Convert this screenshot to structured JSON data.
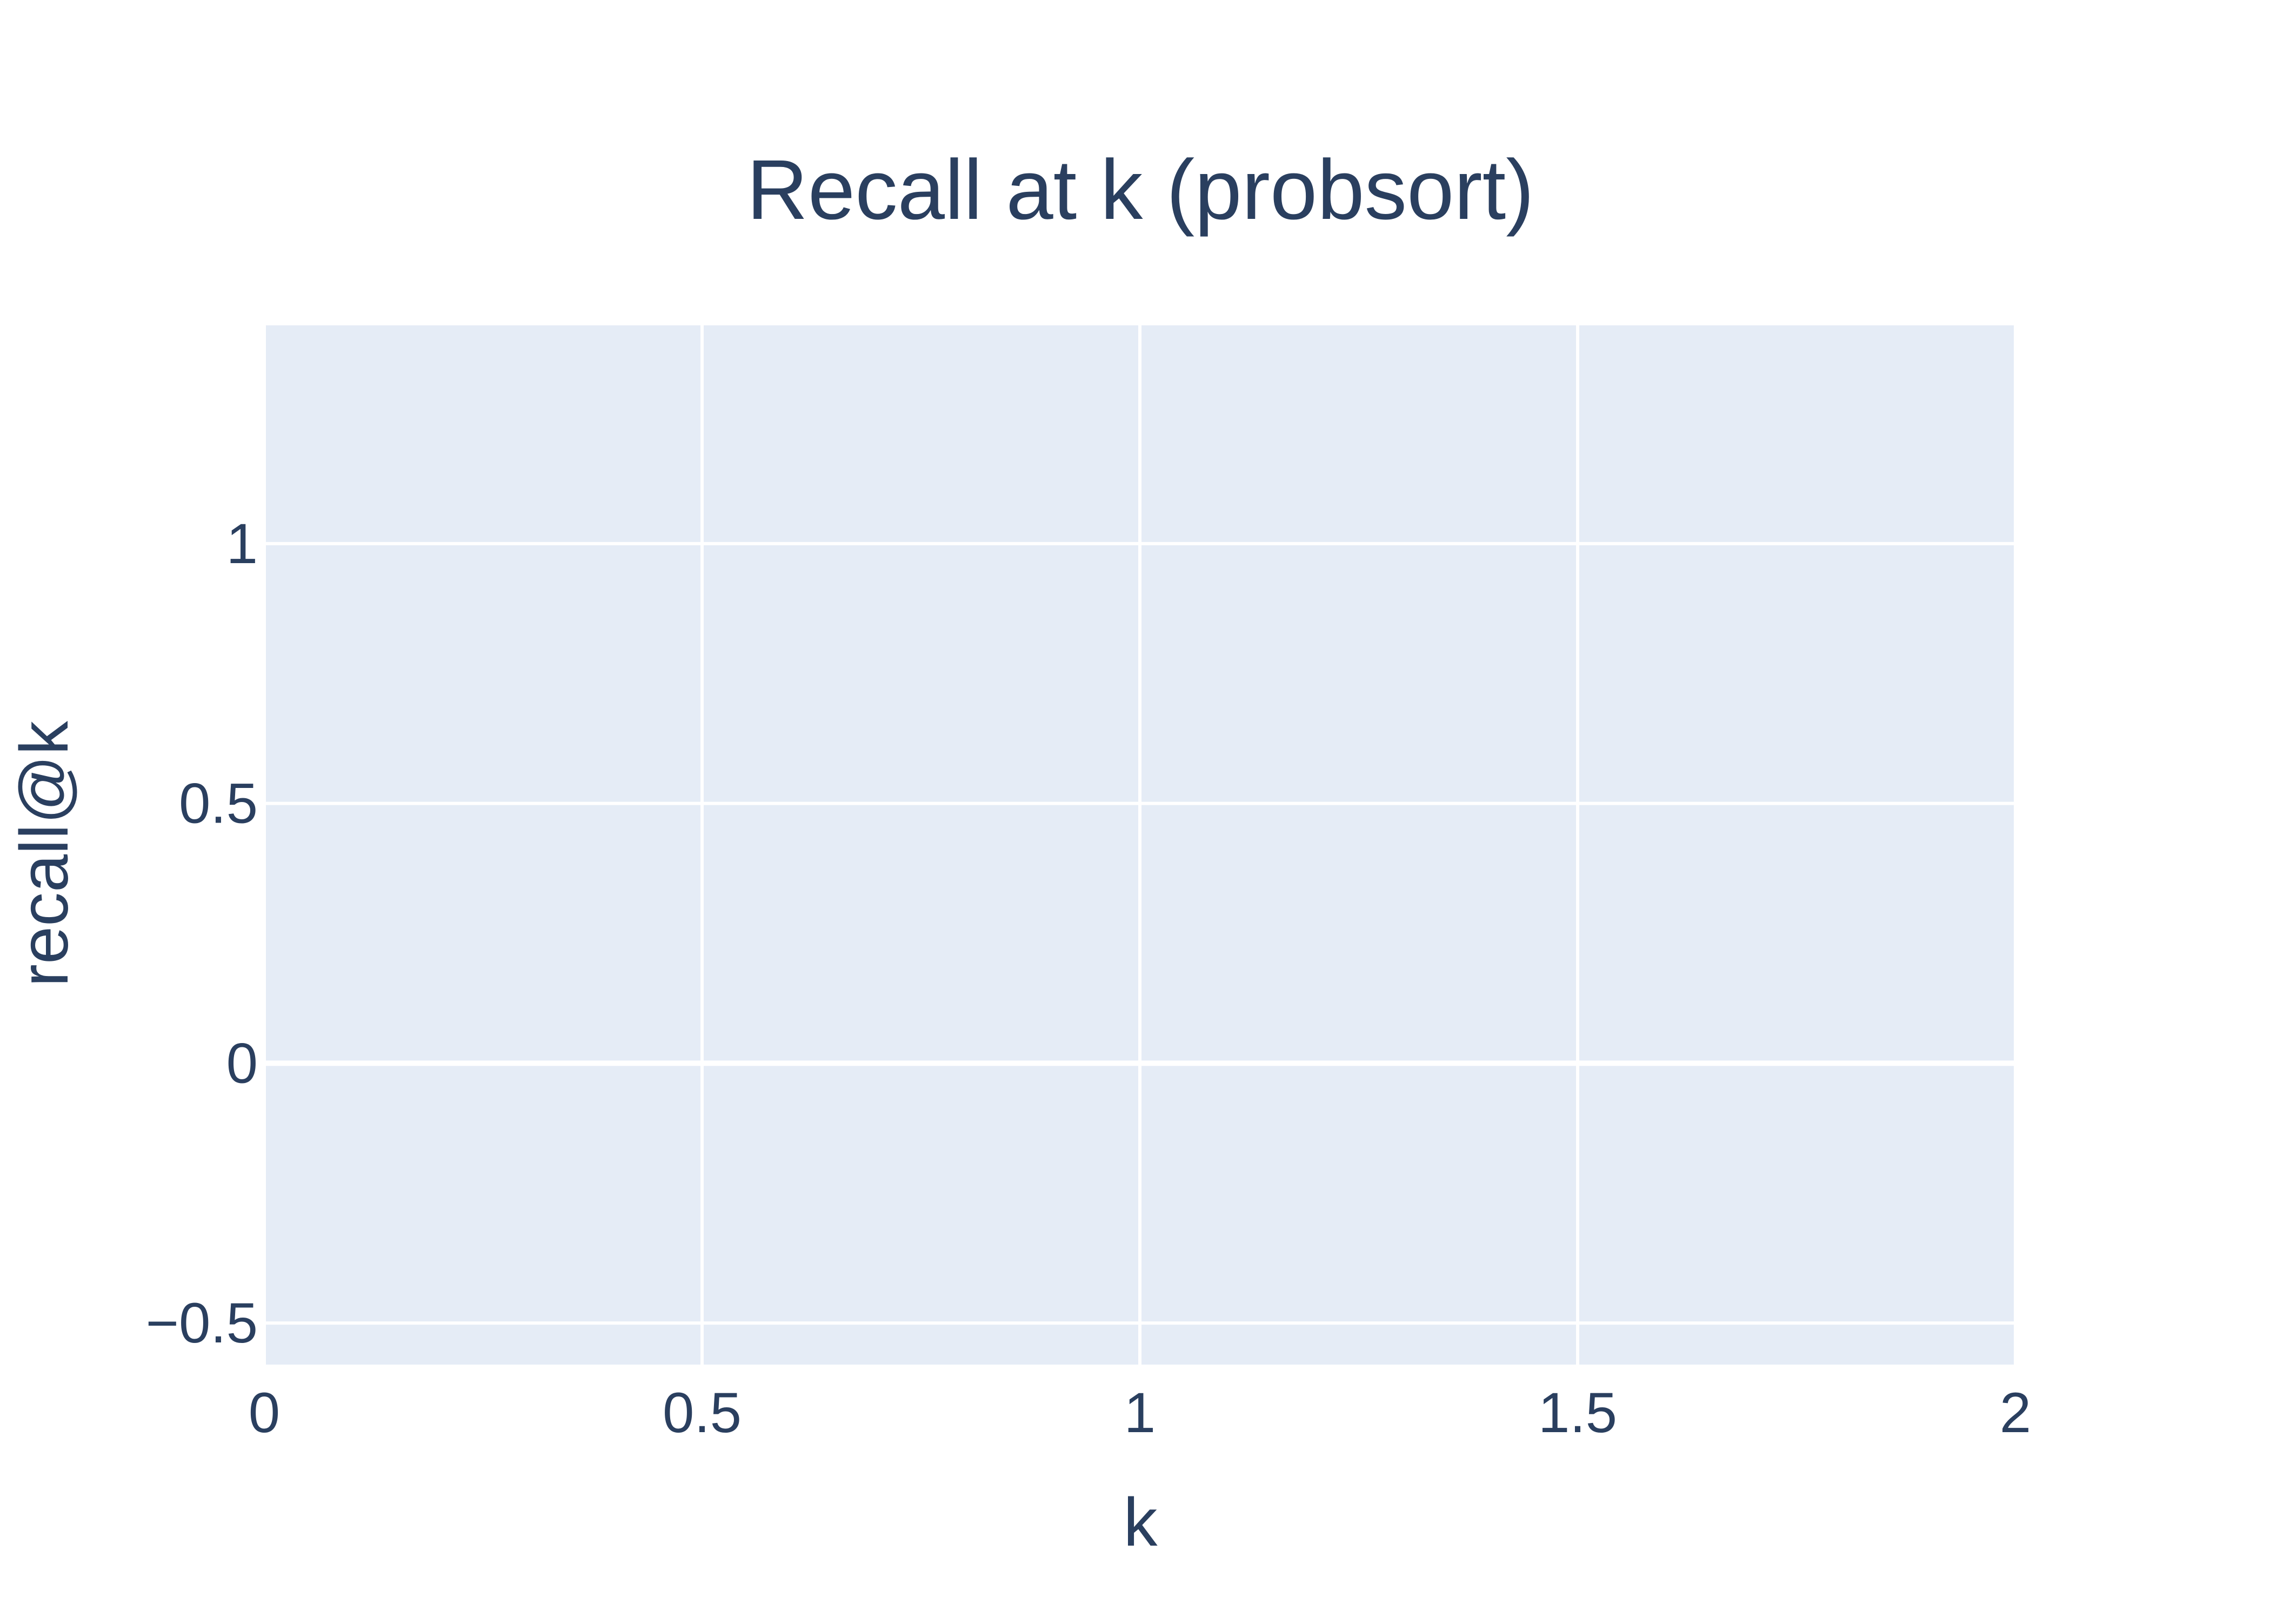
{
  "chart_data": {
    "type": "line",
    "title": "Recall at k (probsort)",
    "xlabel": "k",
    "ylabel": "recall@k",
    "xlim": [
      0,
      2
    ],
    "ylim": [
      -0.58,
      1.42
    ],
    "x_ticks": [
      0,
      0.5,
      1,
      1.5,
      2
    ],
    "x_tick_labels": [
      "0",
      "0.5",
      "1",
      "1.5",
      "2"
    ],
    "y_ticks": [
      -0.5,
      0,
      0.5,
      1
    ],
    "y_tick_labels": [
      "−0.5",
      "0",
      "0.5",
      "1"
    ],
    "grid": true,
    "series": [],
    "colors": {
      "plot_background": "#E5ECF6",
      "grid": "#FFFFFF",
      "text": "#2A3F5F"
    }
  }
}
